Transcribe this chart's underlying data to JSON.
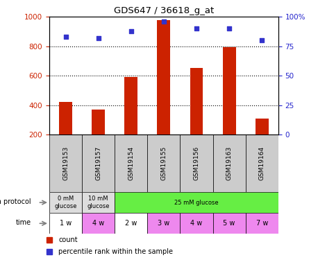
{
  "title": "GDS647 / 36618_g_at",
  "samples": [
    "GSM19153",
    "GSM19157",
    "GSM19154",
    "GSM19155",
    "GSM19156",
    "GSM19163",
    "GSM19164"
  ],
  "bar_values": [
    420,
    370,
    590,
    980,
    655,
    795,
    310
  ],
  "percentile_values": [
    83,
    82,
    88,
    96,
    90,
    90,
    80
  ],
  "bar_color": "#cc2200",
  "dot_color": "#3333cc",
  "ylim_left": [
    200,
    1000
  ],
  "ylim_right": [
    0,
    100
  ],
  "yticks_left": [
    200,
    400,
    600,
    800,
    1000
  ],
  "yticks_right": [
    0,
    25,
    50,
    75,
    100
  ],
  "ytick_right_labels": [
    "0",
    "25",
    "50",
    "75",
    "100%"
  ],
  "growth_protocol": [
    {
      "label": "0 mM\nglucose",
      "span": 1,
      "color": "#dddddd"
    },
    {
      "label": "10 mM\nglucose",
      "span": 1,
      "color": "#dddddd"
    },
    {
      "label": "25 mM glucose",
      "span": 5,
      "color": "#66ee44"
    }
  ],
  "time_labels": [
    "1 w",
    "4 w",
    "2 w",
    "3 w",
    "4 w",
    "5 w",
    "7 w"
  ],
  "time_colors": [
    "#ffffff",
    "#ee88ee",
    "#ffffff",
    "#ee88ee",
    "#ee88ee",
    "#ee88ee",
    "#ee88ee"
  ],
  "sample_bg_color": "#cccccc",
  "grid_color": "#000000",
  "left_label_color": "#cc2200",
  "right_label_color": "#2222cc"
}
